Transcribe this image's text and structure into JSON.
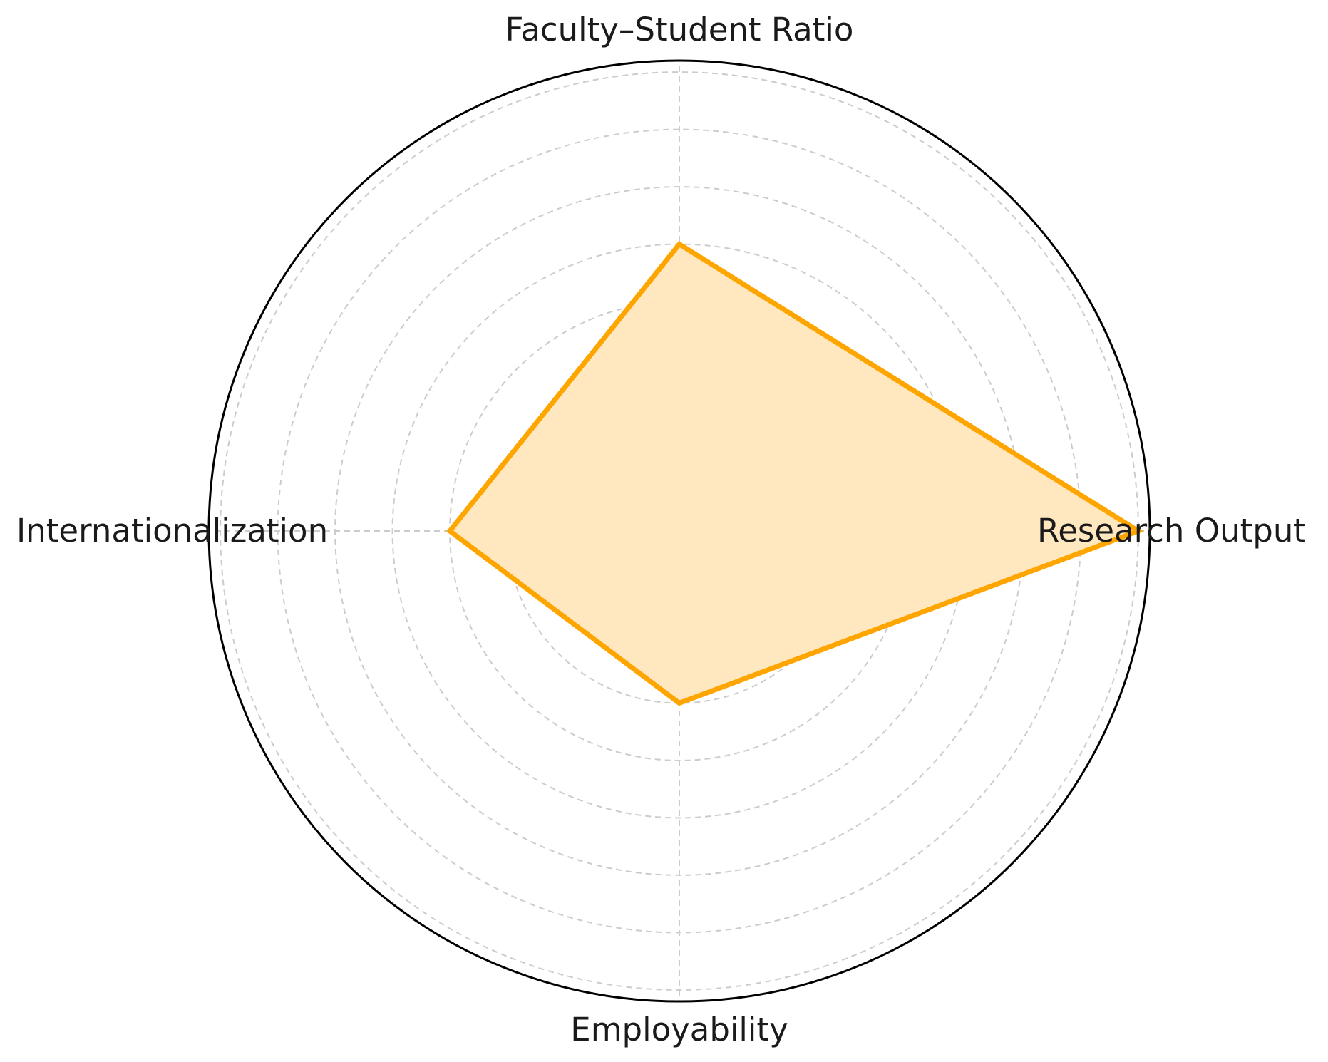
{
  "chart_data": {
    "type": "radar",
    "categories": [
      "Research Output",
      "Faculty–Student Ratio",
      "Internationalization",
      "Employability"
    ],
    "series": [
      {
        "values": [
          8,
          5,
          4,
          3
        ],
        "color": "#FFA500",
        "fill_color": "#FFE8C0"
      }
    ],
    "rlim": [
      0,
      8.2
    ],
    "rings": [
      1,
      2,
      3,
      4,
      5,
      6,
      7,
      8
    ],
    "grid": true,
    "grid_color": "#cccccc",
    "outline_color": "#000000"
  }
}
